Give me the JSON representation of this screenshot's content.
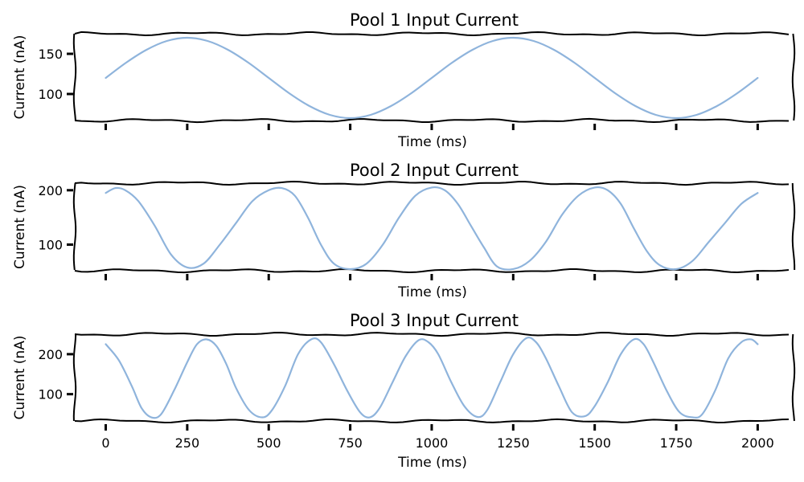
{
  "chart_data": [
    {
      "type": "line",
      "title": "Pool 1 Input Current",
      "xlabel": "Time (ms)",
      "ylabel": "Current (nA)",
      "xlim": [
        -95,
        2110
      ],
      "ylim": [
        67,
        175
      ],
      "xticks": [
        0,
        250,
        500,
        750,
        1000,
        1250,
        1500,
        1750,
        2000
      ],
      "xtick_labels_shown": false,
      "yticks": [
        100,
        150
      ],
      "line_color": "#8fb4dc",
      "series": [
        {
          "x": [
            0,
            62.5,
            125,
            187.5,
            250,
            312.5,
            375,
            437.5,
            500,
            562.5,
            625,
            687.5,
            750,
            812.5,
            875,
            937.5,
            1000,
            1062.5,
            1125,
            1187.5,
            1250,
            1312.5,
            1375,
            1437.5,
            1500,
            1562.5,
            1625,
            1687.5,
            1750,
            1812.5,
            1875,
            1937.5,
            2000
          ],
          "y": [
            120,
            139,
            155,
            166,
            170,
            166,
            155,
            139,
            120,
            101,
            85,
            74,
            70,
            74,
            85,
            101,
            120,
            139,
            155,
            166,
            170,
            166,
            155,
            139,
            120,
            101,
            85,
            74,
            70,
            74,
            85,
            101,
            120
          ]
        }
      ]
    },
    {
      "type": "line",
      "title": "Pool 2 Input Current",
      "xlabel": "Time (ms)",
      "ylabel": "Current (nA)",
      "xlim": [
        -95,
        2110
      ],
      "ylim": [
        52,
        213
      ],
      "xticks": [
        0,
        250,
        500,
        750,
        1000,
        1250,
        1500,
        1750,
        2000
      ],
      "xtick_labels_shown": false,
      "yticks": [
        100,
        200
      ],
      "line_color": "#8fb4dc",
      "series": [
        {
          "x": [
            0,
            30,
            60,
            100,
            150,
            200,
            250,
            300,
            350,
            400,
            450,
            500,
            540,
            580,
            620,
            660,
            700,
            750,
            800,
            850,
            900,
            950,
            1000,
            1040,
            1080,
            1120,
            1160,
            1200,
            1250,
            1300,
            1350,
            1400,
            1450,
            1500,
            1540,
            1580,
            1620,
            1660,
            1700,
            1750,
            1800,
            1850,
            1900,
            1950,
            2000
          ],
          "y": [
            195,
            204,
            200,
            180,
            135,
            82,
            58,
            65,
            100,
            140,
            180,
            200,
            204,
            190,
            150,
            100,
            65,
            55,
            65,
            100,
            150,
            190,
            205,
            200,
            175,
            135,
            95,
            60,
            55,
            70,
            105,
            155,
            190,
            205,
            200,
            175,
            130,
            88,
            62,
            55,
            70,
            105,
            140,
            175,
            195
          ]
        }
      ]
    },
    {
      "type": "line",
      "title": "Pool 3 Input Current",
      "xlabel": "Time (ms)",
      "ylabel": "Current (nA)",
      "xlim": [
        -95,
        2110
      ],
      "ylim": [
        33,
        250
      ],
      "xticks": [
        0,
        250,
        500,
        750,
        1000,
        1250,
        1500,
        1750,
        2000
      ],
      "xtick_labels": [
        "0",
        "250",
        "500",
        "750",
        "1000",
        "1250",
        "1500",
        "1750",
        "2000"
      ],
      "xtick_labels_shown": true,
      "yticks": [
        100,
        200
      ],
      "line_color": "#8fb4dc",
      "series": [
        {
          "x": [
            0,
            40,
            80,
            110,
            140,
            170,
            210,
            250,
            280,
            310,
            340,
            370,
            400,
            440,
            480,
            510,
            550,
            590,
            630,
            660,
            700,
            740,
            780,
            810,
            840,
            880,
            920,
            960,
            990,
            1020,
            1060,
            1100,
            1140,
            1170,
            1210,
            1250,
            1290,
            1320,
            1350,
            1390,
            1430,
            1470,
            1500,
            1540,
            1580,
            1620,
            1650,
            1680,
            1720,
            1760,
            1800,
            1830,
            1870,
            1910,
            1950,
            1980,
            2000
          ],
          "y": [
            225,
            185,
            120,
            65,
            42,
            50,
            110,
            180,
            225,
            237,
            220,
            175,
            115,
            60,
            42,
            60,
            120,
            200,
            237,
            230,
            175,
            110,
            55,
            42,
            65,
            130,
            195,
            235,
            230,
            200,
            130,
            70,
            43,
            60,
            130,
            200,
            240,
            230,
            190,
            120,
            55,
            45,
            70,
            130,
            200,
            237,
            225,
            180,
            110,
            55,
            42,
            50,
            110,
            190,
            230,
            237,
            225
          ]
        }
      ]
    }
  ]
}
